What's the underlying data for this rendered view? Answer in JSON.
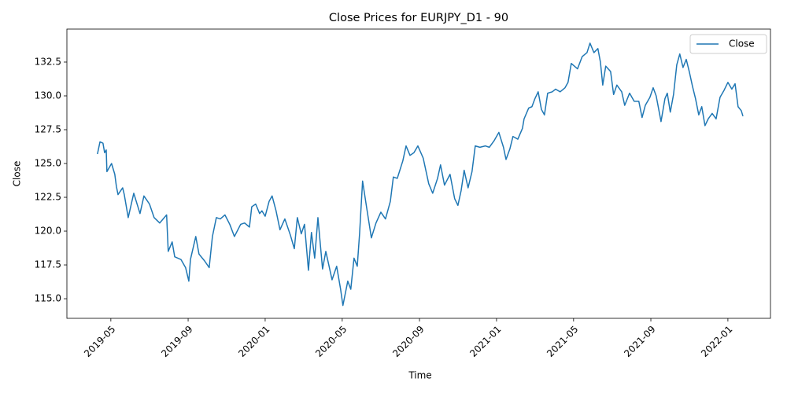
{
  "chart_data": {
    "type": "line",
    "title": "Close Prices for EURJPY_D1 - 90",
    "xlabel": "Time",
    "ylabel": "Close",
    "x": [
      2019.275,
      2019.286,
      2019.299,
      2019.306,
      2019.313,
      2019.316,
      2019.336,
      2019.35,
      2019.357,
      2019.364,
      2019.384,
      2019.391,
      2019.408,
      2019.432,
      2019.459,
      2019.476,
      2019.5,
      2019.52,
      2019.544,
      2019.574,
      2019.581,
      2019.598,
      2019.609,
      2019.636,
      2019.656,
      2019.67,
      2019.677,
      2019.7,
      2019.714,
      2019.738,
      2019.758,
      2019.772,
      2019.789,
      2019.806,
      2019.826,
      2019.847,
      2019.867,
      2019.894,
      2019.911,
      2019.932,
      2019.942,
      2019.959,
      2019.976,
      2019.986,
      2020.0,
      2020.017,
      2020.03,
      2020.047,
      2020.064,
      2020.085,
      2020.109,
      2020.126,
      2020.139,
      2020.156,
      2020.17,
      2020.187,
      2020.2,
      2020.214,
      2020.228,
      2020.248,
      2020.262,
      2020.275,
      2020.289,
      2020.309,
      2020.326,
      2020.336,
      2020.357,
      2020.37,
      2020.384,
      2020.398,
      2020.408,
      2020.421,
      2020.438,
      2020.459,
      2020.479,
      2020.5,
      2020.52,
      2020.541,
      2020.554,
      2020.571,
      2020.595,
      2020.609,
      2020.626,
      2020.643,
      2020.66,
      2020.683,
      2020.707,
      2020.724,
      2020.745,
      2020.758,
      2020.775,
      2020.799,
      2020.819,
      2020.833,
      2020.847,
      2020.86,
      2020.877,
      2020.894,
      2020.908,
      2020.928,
      2020.952,
      2020.969,
      2020.99,
      2021.01,
      2021.03,
      2021.041,
      2021.058,
      2021.071,
      2021.092,
      2021.112,
      2021.119,
      2021.139,
      2021.153,
      2021.166,
      2021.18,
      2021.194,
      2021.207,
      2021.221,
      2021.241,
      2021.255,
      2021.275,
      2021.296,
      2021.309,
      2021.323,
      2021.35,
      2021.37,
      2021.391,
      2021.404,
      2021.421,
      2021.438,
      2021.449,
      2021.459,
      2021.472,
      2021.493,
      2021.506,
      2021.52,
      2021.541,
      2021.554,
      2021.575,
      2021.595,
      2021.615,
      2021.629,
      2021.643,
      2021.663,
      2021.677,
      2021.69,
      2021.711,
      2021.728,
      2021.738,
      2021.751,
      2021.765,
      2021.779,
      2021.792,
      2021.806,
      2021.82,
      2021.833,
      2021.847,
      2021.86,
      2021.874,
      2021.887,
      2021.901,
      2021.915,
      2021.932,
      2021.949,
      2021.966,
      2021.983,
      2022.0,
      2022.017,
      2022.031,
      2022.044,
      2022.058,
      2022.065
    ],
    "series": [
      {
        "name": "Close",
        "color": "#1f77b4",
        "values": [
          125.7,
          126.6,
          126.5,
          125.8,
          126.0,
          124.4,
          125.0,
          124.2,
          123.3,
          122.7,
          123.2,
          122.7,
          121.0,
          122.8,
          121.3,
          122.6,
          122.0,
          121.0,
          120.6,
          121.2,
          118.5,
          119.2,
          118.1,
          117.9,
          117.3,
          116.3,
          117.9,
          119.6,
          118.3,
          117.8,
          117.3,
          119.6,
          121.0,
          120.9,
          121.2,
          120.5,
          119.6,
          120.5,
          120.6,
          120.3,
          121.8,
          122.0,
          121.3,
          121.5,
          121.1,
          122.2,
          122.6,
          121.5,
          120.1,
          120.9,
          119.7,
          118.7,
          121.0,
          119.8,
          120.5,
          117.1,
          119.9,
          118.0,
          121.0,
          117.2,
          118.5,
          117.5,
          116.4,
          117.4,
          115.7,
          114.5,
          116.3,
          115.7,
          118.0,
          117.4,
          119.8,
          123.7,
          121.8,
          119.5,
          120.6,
          121.4,
          120.9,
          122.2,
          124.0,
          123.9,
          125.2,
          126.3,
          125.6,
          125.8,
          126.3,
          125.4,
          123.5,
          122.8,
          123.9,
          124.9,
          123.4,
          124.2,
          122.4,
          121.9,
          123.0,
          124.5,
          123.2,
          124.4,
          126.3,
          126.2,
          126.3,
          126.2,
          126.7,
          127.3,
          126.2,
          125.3,
          126.1,
          127.0,
          126.8,
          127.6,
          128.3,
          129.1,
          129.2,
          129.8,
          130.3,
          129.0,
          128.6,
          130.2,
          130.3,
          130.5,
          130.3,
          130.6,
          131.0,
          132.4,
          132.0,
          132.9,
          133.2,
          133.9,
          133.2,
          133.5,
          132.5,
          130.8,
          132.2,
          131.8,
          130.1,
          130.8,
          130.3,
          129.3,
          130.2,
          129.6,
          129.6,
          128.4,
          129.3,
          129.9,
          130.6,
          130.0,
          128.1,
          129.8,
          130.2,
          128.8,
          130.1,
          132.3,
          133.1,
          132.1,
          132.7,
          131.8,
          130.7,
          129.8,
          128.6,
          129.2,
          127.8,
          128.3,
          128.7,
          128.3,
          129.9,
          130.4,
          131.0,
          130.5,
          130.9,
          129.2,
          128.9,
          128.5
        ]
      }
    ],
    "xlim": [
      2019.143,
      2022.184
    ],
    "xticks": [
      {
        "value": 2019.333,
        "label": "2019-05"
      },
      {
        "value": 2019.667,
        "label": "2019-09"
      },
      {
        "value": 2020.0,
        "label": "2020-01"
      },
      {
        "value": 2020.333,
        "label": "2020-05"
      },
      {
        "value": 2020.667,
        "label": "2020-09"
      },
      {
        "value": 2021.0,
        "label": "2021-01"
      },
      {
        "value": 2021.333,
        "label": "2021-05"
      },
      {
        "value": 2021.667,
        "label": "2021-09"
      },
      {
        "value": 2022.0,
        "label": "2022-01"
      }
    ],
    "ylim": [
      113.55,
      134.94
    ],
    "yticks": [
      {
        "value": 115,
        "label": "115.0"
      },
      117.5,
      {
        "value": 120,
        "label": "120.0"
      },
      122.5,
      {
        "value": 125,
        "label": "125.0"
      },
      127.5,
      {
        "value": 130,
        "label": "130.0"
      },
      132.5
    ],
    "legend": "upper right",
    "grid": false
  }
}
